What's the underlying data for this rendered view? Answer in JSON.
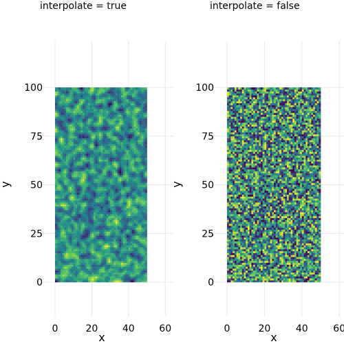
{
  "chart_data": [
    {
      "type": "heatmap",
      "title": "interpolate = true",
      "interpolate": true,
      "xlabel": "x",
      "ylabel": "y",
      "xlim": [
        -2,
        60
      ],
      "ylim": [
        -15,
        120
      ],
      "x_ticks": [
        0,
        20,
        40,
        60
      ],
      "y_ticks": [
        0,
        25,
        50,
        75,
        100
      ],
      "data_extent": {
        "x": [
          0,
          50
        ],
        "y": [
          0,
          100
        ]
      },
      "grid": "on",
      "colormap": "viridis",
      "value_range": [
        0,
        1
      ],
      "cells": {
        "nx": 50,
        "ny": 100
      },
      "values_note": "random noise (seed 7), values uniform in [0,1]"
    },
    {
      "type": "heatmap",
      "title": "interpolate = false",
      "interpolate": false,
      "xlabel": "x",
      "ylabel": "y",
      "xlim": [
        -2,
        60
      ],
      "ylim": [
        -15,
        120
      ],
      "x_ticks": [
        0,
        20,
        40,
        60
      ],
      "y_ticks": [
        0,
        25,
        50,
        75,
        100
      ],
      "data_extent": {
        "x": [
          0,
          50
        ],
        "y": [
          0,
          100
        ]
      },
      "grid": "on",
      "colormap": "viridis",
      "value_range": [
        0,
        1
      ],
      "cells": {
        "nx": 50,
        "ny": 100
      },
      "values_note": "random noise (seed 7), values uniform in [0,1]"
    }
  ],
  "colors": {
    "viridis": [
      "#440154",
      "#3b528b",
      "#21918c",
      "#5ec962",
      "#fde725"
    ],
    "grid": "#e8e8e8",
    "background": "#ffffff"
  }
}
